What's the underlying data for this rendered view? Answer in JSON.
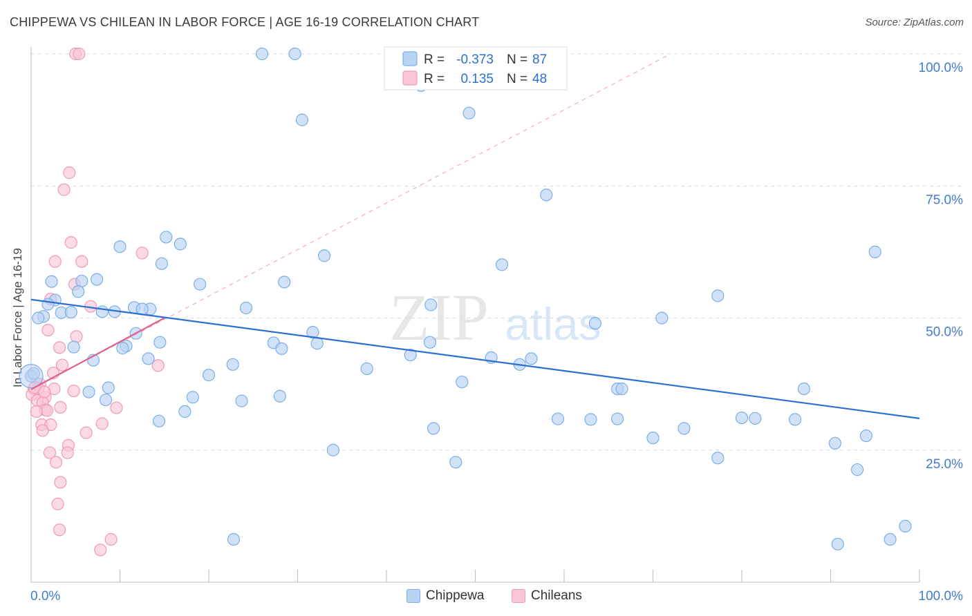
{
  "title": "CHIPPEWA VS CHILEAN IN LABOR FORCE | AGE 16-19 CORRELATION CHART",
  "source": "Source: ZipAtlas.com",
  "watermark": {
    "zip": "ZIP",
    "atlas": "atlas"
  },
  "chart_data": {
    "type": "scatter",
    "ylabel": "In Labor Force | Age 16-19",
    "xlim": [
      0,
      100
    ],
    "ylim": [
      0,
      100
    ],
    "x_tick_labels": [
      {
        "value": 0,
        "label": "0.0%"
      },
      {
        "value": 100,
        "label": "100.0%"
      }
    ],
    "y_tick_labels": [
      {
        "value": 25,
        "label": "25.0%"
      },
      {
        "value": 50,
        "label": "50.0%"
      },
      {
        "value": 75,
        "label": "75.0%"
      },
      {
        "value": 100,
        "label": "100.0%"
      }
    ],
    "grid": true,
    "legend_position": "top-center",
    "stats_legend": [
      {
        "r_label": "R =",
        "r_value": "-0.373",
        "n_label": "N =",
        "n_value": "87"
      },
      {
        "r_label": "R =",
        "r_value": "0.135",
        "n_label": "N =",
        "n_value": "48"
      }
    ],
    "series": [
      {
        "name": "Chippewa",
        "color": "#7aaee8",
        "fill": "#b9d3f3",
        "trend": {
          "x": [
            0,
            100
          ],
          "y": [
            53.5,
            31.0
          ],
          "color": "#2b6fd0"
        },
        "points": [
          [
            26.0,
            100.0
          ],
          [
            29.7,
            100.0
          ],
          [
            43.9,
            94.0
          ],
          [
            30.5,
            87.5
          ],
          [
            49.3,
            88.8
          ],
          [
            58.0,
            73.3
          ],
          [
            95.0,
            62.5
          ],
          [
            15.2,
            65.3
          ],
          [
            16.8,
            64.0
          ],
          [
            10.0,
            63.5
          ],
          [
            14.7,
            60.3
          ],
          [
            33.0,
            61.8
          ],
          [
            53.0,
            60.1
          ],
          [
            7.4,
            57.3
          ],
          [
            5.7,
            57.0
          ],
          [
            2.3,
            56.9
          ],
          [
            19.0,
            56.4
          ],
          [
            28.5,
            56.8
          ],
          [
            5.3,
            55.0
          ],
          [
            77.3,
            54.2
          ],
          [
            2.7,
            53.4
          ],
          [
            1.9,
            52.6
          ],
          [
            11.6,
            52.0
          ],
          [
            13.4,
            51.7
          ],
          [
            45.0,
            52.5
          ],
          [
            8.0,
            51.2
          ],
          [
            9.4,
            51.2
          ],
          [
            3.4,
            51.0
          ],
          [
            4.5,
            51.1
          ],
          [
            12.5,
            51.7
          ],
          [
            1.4,
            50.3
          ],
          [
            0.8,
            50.0
          ],
          [
            24.2,
            51.9
          ],
          [
            71.0,
            50.0
          ],
          [
            63.5,
            49.0
          ],
          [
            31.7,
            47.3
          ],
          [
            11.8,
            47.1
          ],
          [
            27.3,
            45.3
          ],
          [
            14.5,
            45.4
          ],
          [
            32.2,
            45.2
          ],
          [
            44.9,
            45.4
          ],
          [
            10.7,
            44.7
          ],
          [
            28.2,
            44.2
          ],
          [
            4.8,
            44.5
          ],
          [
            10.3,
            44.3
          ],
          [
            42.7,
            43.0
          ],
          [
            51.8,
            42.5
          ],
          [
            56.3,
            42.3
          ],
          [
            13.2,
            42.3
          ],
          [
            55.0,
            41.2
          ],
          [
            7.0,
            42.0
          ],
          [
            22.7,
            41.2
          ],
          [
            37.8,
            40.4
          ],
          [
            20.0,
            39.2
          ],
          [
            0.0,
            39.0
          ],
          [
            48.5,
            37.9
          ],
          [
            8.7,
            36.8
          ],
          [
            66.0,
            36.6
          ],
          [
            66.5,
            36.6
          ],
          [
            87.0,
            36.6
          ],
          [
            6.5,
            36.0
          ],
          [
            18.2,
            35.0
          ],
          [
            28.0,
            35.2
          ],
          [
            23.7,
            34.3
          ],
          [
            8.4,
            34.5
          ],
          [
            17.3,
            32.3
          ],
          [
            59.3,
            30.9
          ],
          [
            63.0,
            30.8
          ],
          [
            66.0,
            30.9
          ],
          [
            80.0,
            31.1
          ],
          [
            81.5,
            31.0
          ],
          [
            86.0,
            30.8
          ],
          [
            14.4,
            30.5
          ],
          [
            45.3,
            29.1
          ],
          [
            73.5,
            29.1
          ],
          [
            70.0,
            27.3
          ],
          [
            94.0,
            27.7
          ],
          [
            90.5,
            26.3
          ],
          [
            34.0,
            25.0
          ],
          [
            47.8,
            22.7
          ],
          [
            77.3,
            23.5
          ],
          [
            93.0,
            21.3
          ],
          [
            98.4,
            10.6
          ],
          [
            22.8,
            8.1
          ],
          [
            90.8,
            7.2
          ],
          [
            96.7,
            8.1
          ],
          [
            0.3,
            39.5
          ]
        ]
      },
      {
        "name": "Chileans",
        "color": "#f19ab5",
        "fill": "#f8c6d6",
        "trend": {
          "x": [
            0,
            15
          ],
          "y": [
            36.5,
            50.0
          ],
          "color": "#e0608f"
        },
        "trend_extended": {
          "x": [
            0,
            72
          ],
          "y": [
            36.5,
            100.0
          ],
          "color": "#eaa0bb"
        },
        "points": [
          [
            5.0,
            100.0
          ],
          [
            5.4,
            100.0
          ],
          [
            4.3,
            77.5
          ],
          [
            3.7,
            74.3
          ],
          [
            4.5,
            64.3
          ],
          [
            12.5,
            62.3
          ],
          [
            2.7,
            60.7
          ],
          [
            5.7,
            60.7
          ],
          [
            4.9,
            56.4
          ],
          [
            2.2,
            53.6
          ],
          [
            6.7,
            52.2
          ],
          [
            1.9,
            47.7
          ],
          [
            5.1,
            46.5
          ],
          [
            3.2,
            44.4
          ],
          [
            14.3,
            41.0
          ],
          [
            3.5,
            41.1
          ],
          [
            2.5,
            39.6
          ],
          [
            0.6,
            37.6
          ],
          [
            0.3,
            36.6
          ],
          [
            1.0,
            37.5
          ],
          [
            0.8,
            36.6
          ],
          [
            2.6,
            36.6
          ],
          [
            4.8,
            36.2
          ],
          [
            0.1,
            35.5
          ],
          [
            1.6,
            35.0
          ],
          [
            0.7,
            34.4
          ],
          [
            1.3,
            34.0
          ],
          [
            3.3,
            33.1
          ],
          [
            9.6,
            33.0
          ],
          [
            1.6,
            32.6
          ],
          [
            1.8,
            32.5
          ],
          [
            0.6,
            32.3
          ],
          [
            8.0,
            30.0
          ],
          [
            1.2,
            29.8
          ],
          [
            2.2,
            29.8
          ],
          [
            1.3,
            28.7
          ],
          [
            6.2,
            28.3
          ],
          [
            4.2,
            25.9
          ],
          [
            2.1,
            24.5
          ],
          [
            4.1,
            24.5
          ],
          [
            2.8,
            22.7
          ],
          [
            3.3,
            18.9
          ],
          [
            3.0,
            14.8
          ],
          [
            3.2,
            9.9
          ],
          [
            9.0,
            8.1
          ],
          [
            7.8,
            6.1
          ],
          [
            0.4,
            36.8
          ],
          [
            1.5,
            36.0
          ]
        ]
      }
    ]
  }
}
